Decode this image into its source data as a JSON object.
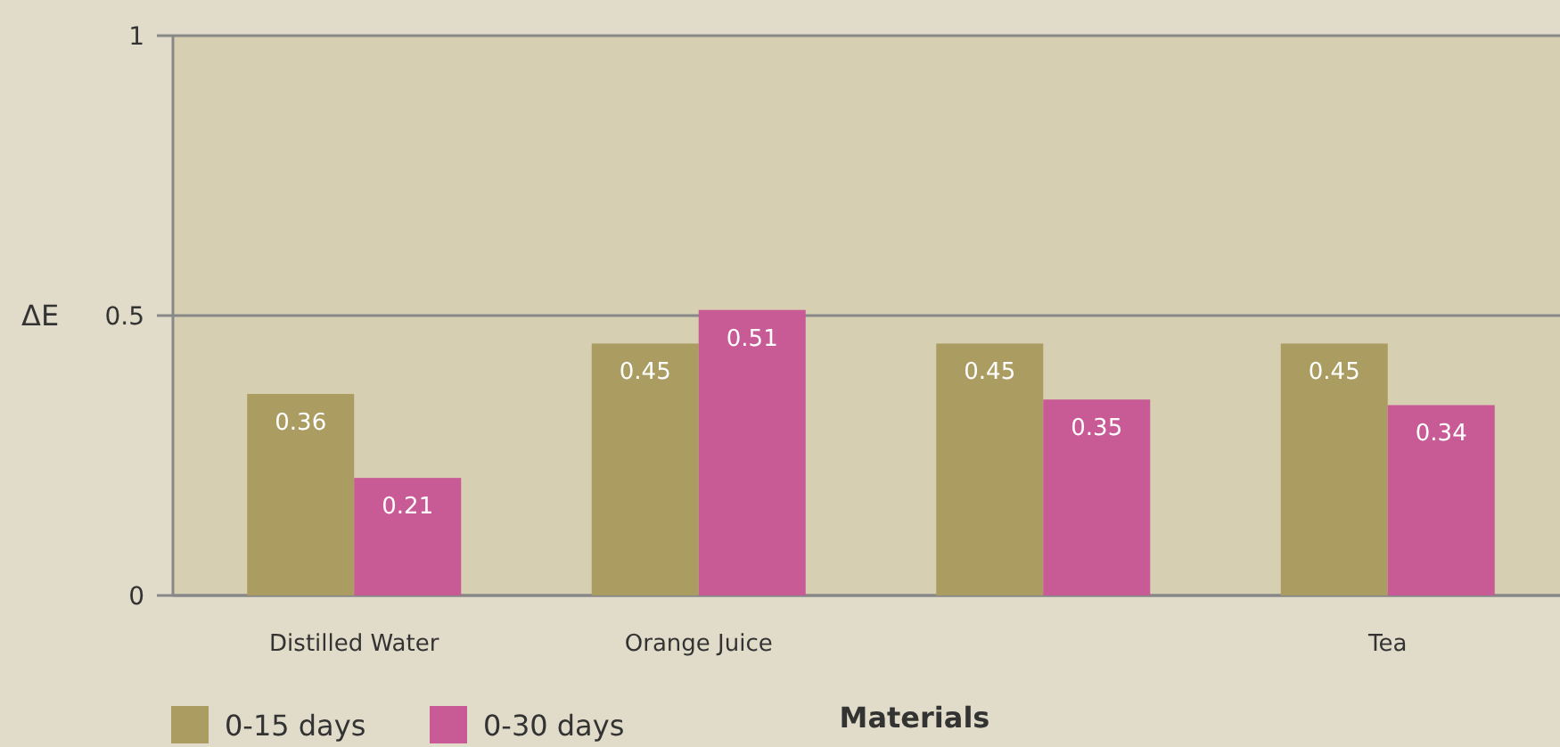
{
  "chart_data": {
    "type": "bar",
    "xlabel": "Materials",
    "ylabel": "ΔE",
    "categories": [
      "Distilled Water",
      "Orange Juice",
      null,
      "Tea"
    ],
    "series": [
      {
        "name": "0-15 days",
        "color": "#ab9d62",
        "values": [
          0.36,
          0.45,
          0.45,
          0.45
        ]
      },
      {
        "name": "0-30 days",
        "color": "#c85a96",
        "values": [
          0.21,
          0.51,
          0.35,
          0.34
        ]
      }
    ],
    "ylim": [
      0,
      1
    ],
    "yticks": [
      0,
      0.5,
      1
    ],
    "grid": "y",
    "legend": "bottom left",
    "data_labels": true
  }
}
